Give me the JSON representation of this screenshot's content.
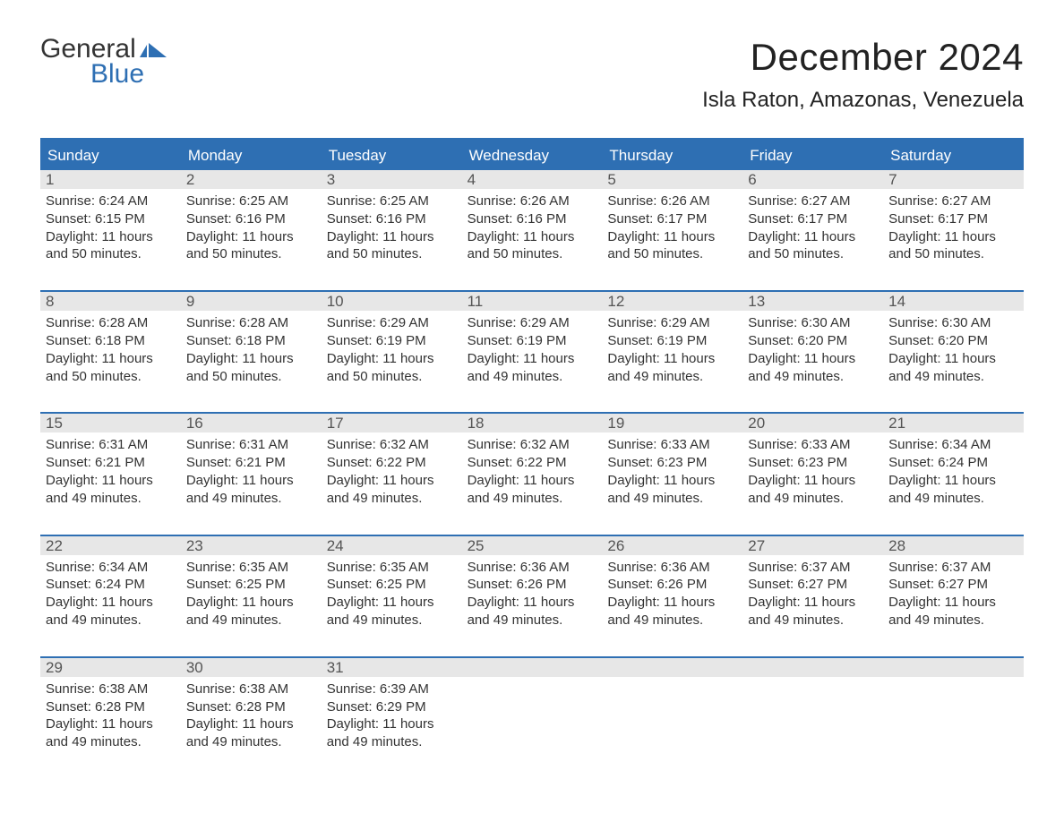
{
  "logo": {
    "word1": "General",
    "word2": "Blue"
  },
  "title": "December 2024",
  "subtitle": "Isla Raton, Amazonas, Venezuela",
  "colors": {
    "brand_blue": "#2e6fb3",
    "header_bg": "#2e6fb3",
    "datebar_bg": "#e7e7e7",
    "text": "#333333",
    "background": "#ffffff"
  },
  "calendar": {
    "day_names": [
      "Sunday",
      "Monday",
      "Tuesday",
      "Wednesday",
      "Thursday",
      "Friday",
      "Saturday"
    ],
    "weeks": [
      [
        {
          "n": "1",
          "sunrise": "6:24 AM",
          "sunset": "6:15 PM",
          "daylight": "11 hours and 50 minutes."
        },
        {
          "n": "2",
          "sunrise": "6:25 AM",
          "sunset": "6:16 PM",
          "daylight": "11 hours and 50 minutes."
        },
        {
          "n": "3",
          "sunrise": "6:25 AM",
          "sunset": "6:16 PM",
          "daylight": "11 hours and 50 minutes."
        },
        {
          "n": "4",
          "sunrise": "6:26 AM",
          "sunset": "6:16 PM",
          "daylight": "11 hours and 50 minutes."
        },
        {
          "n": "5",
          "sunrise": "6:26 AM",
          "sunset": "6:17 PM",
          "daylight": "11 hours and 50 minutes."
        },
        {
          "n": "6",
          "sunrise": "6:27 AM",
          "sunset": "6:17 PM",
          "daylight": "11 hours and 50 minutes."
        },
        {
          "n": "7",
          "sunrise": "6:27 AM",
          "sunset": "6:17 PM",
          "daylight": "11 hours and 50 minutes."
        }
      ],
      [
        {
          "n": "8",
          "sunrise": "6:28 AM",
          "sunset": "6:18 PM",
          "daylight": "11 hours and 50 minutes."
        },
        {
          "n": "9",
          "sunrise": "6:28 AM",
          "sunset": "6:18 PM",
          "daylight": "11 hours and 50 minutes."
        },
        {
          "n": "10",
          "sunrise": "6:29 AM",
          "sunset": "6:19 PM",
          "daylight": "11 hours and 50 minutes."
        },
        {
          "n": "11",
          "sunrise": "6:29 AM",
          "sunset": "6:19 PM",
          "daylight": "11 hours and 49 minutes."
        },
        {
          "n": "12",
          "sunrise": "6:29 AM",
          "sunset": "6:19 PM",
          "daylight": "11 hours and 49 minutes."
        },
        {
          "n": "13",
          "sunrise": "6:30 AM",
          "sunset": "6:20 PM",
          "daylight": "11 hours and 49 minutes."
        },
        {
          "n": "14",
          "sunrise": "6:30 AM",
          "sunset": "6:20 PM",
          "daylight": "11 hours and 49 minutes."
        }
      ],
      [
        {
          "n": "15",
          "sunrise": "6:31 AM",
          "sunset": "6:21 PM",
          "daylight": "11 hours and 49 minutes."
        },
        {
          "n": "16",
          "sunrise": "6:31 AM",
          "sunset": "6:21 PM",
          "daylight": "11 hours and 49 minutes."
        },
        {
          "n": "17",
          "sunrise": "6:32 AM",
          "sunset": "6:22 PM",
          "daylight": "11 hours and 49 minutes."
        },
        {
          "n": "18",
          "sunrise": "6:32 AM",
          "sunset": "6:22 PM",
          "daylight": "11 hours and 49 minutes."
        },
        {
          "n": "19",
          "sunrise": "6:33 AM",
          "sunset": "6:23 PM",
          "daylight": "11 hours and 49 minutes."
        },
        {
          "n": "20",
          "sunrise": "6:33 AM",
          "sunset": "6:23 PM",
          "daylight": "11 hours and 49 minutes."
        },
        {
          "n": "21",
          "sunrise": "6:34 AM",
          "sunset": "6:24 PM",
          "daylight": "11 hours and 49 minutes."
        }
      ],
      [
        {
          "n": "22",
          "sunrise": "6:34 AM",
          "sunset": "6:24 PM",
          "daylight": "11 hours and 49 minutes."
        },
        {
          "n": "23",
          "sunrise": "6:35 AM",
          "sunset": "6:25 PM",
          "daylight": "11 hours and 49 minutes."
        },
        {
          "n": "24",
          "sunrise": "6:35 AM",
          "sunset": "6:25 PM",
          "daylight": "11 hours and 49 minutes."
        },
        {
          "n": "25",
          "sunrise": "6:36 AM",
          "sunset": "6:26 PM",
          "daylight": "11 hours and 49 minutes."
        },
        {
          "n": "26",
          "sunrise": "6:36 AM",
          "sunset": "6:26 PM",
          "daylight": "11 hours and 49 minutes."
        },
        {
          "n": "27",
          "sunrise": "6:37 AM",
          "sunset": "6:27 PM",
          "daylight": "11 hours and 49 minutes."
        },
        {
          "n": "28",
          "sunrise": "6:37 AM",
          "sunset": "6:27 PM",
          "daylight": "11 hours and 49 minutes."
        }
      ],
      [
        {
          "n": "29",
          "sunrise": "6:38 AM",
          "sunset": "6:28 PM",
          "daylight": "11 hours and 49 minutes."
        },
        {
          "n": "30",
          "sunrise": "6:38 AM",
          "sunset": "6:28 PM",
          "daylight": "11 hours and 49 minutes."
        },
        {
          "n": "31",
          "sunrise": "6:39 AM",
          "sunset": "6:29 PM",
          "daylight": "11 hours and 49 minutes."
        },
        null,
        null,
        null,
        null
      ]
    ]
  },
  "labels": {
    "sunrise_prefix": "Sunrise: ",
    "sunset_prefix": "Sunset: ",
    "daylight_prefix": "Daylight: "
  }
}
